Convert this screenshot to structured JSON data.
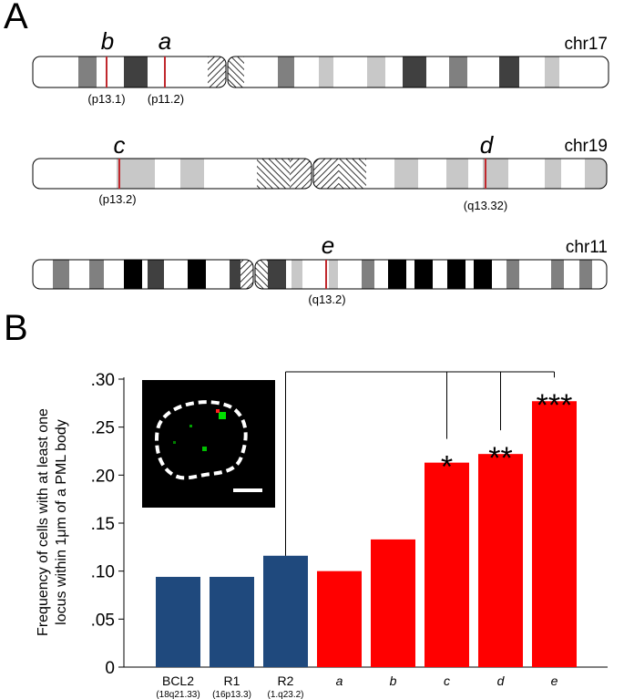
{
  "panels": {
    "a": "A",
    "b": "B"
  },
  "chromosomes": [
    {
      "name": "chr17",
      "loci": [
        {
          "letter": "b",
          "band": "(p13.1)"
        },
        {
          "letter": "a",
          "band": "(p11.2)"
        }
      ]
    },
    {
      "name": "chr19",
      "loci": [
        {
          "letter": "c",
          "band": "(p13.2)"
        },
        {
          "letter": "d",
          "band": "(q13.32)"
        }
      ]
    },
    {
      "name": "chr11",
      "loci": [
        {
          "letter": "e",
          "band": "(q13.2)"
        }
      ]
    }
  ],
  "colors": {
    "blue": "#1f497d",
    "red": "#ff0000",
    "locus_line": "#c0282d",
    "green": "#00e000"
  },
  "chart_data": {
    "type": "bar",
    "ylabel": "Frequency of cells with at least one locus within 1μm of a PML body",
    "ylim": [
      0,
      0.3
    ],
    "yticks": [
      "0",
      ".05",
      ".10",
      ".15",
      ".20",
      ".25",
      ".30"
    ],
    "categories": [
      {
        "label": "BCL2",
        "sub": "(18q21.33)",
        "value": 0.094,
        "color": "#1f497d",
        "italic": false
      },
      {
        "label": "R1",
        "sub": "(16p13.3)",
        "value": 0.094,
        "color": "#1f497d",
        "italic": false
      },
      {
        "label": "R2",
        "sub": "(1.q23.2)",
        "value": 0.116,
        "color": "#1f497d",
        "italic": false
      },
      {
        "label": "a",
        "sub": "",
        "value": 0.1,
        "color": "#ff0000",
        "italic": true
      },
      {
        "label": "b",
        "sub": "",
        "value": 0.133,
        "color": "#ff0000",
        "italic": true
      },
      {
        "label": "c",
        "sub": "",
        "value": 0.213,
        "color": "#ff0000",
        "italic": true
      },
      {
        "label": "d",
        "sub": "",
        "value": 0.222,
        "color": "#ff0000",
        "italic": true
      },
      {
        "label": "e",
        "sub": "",
        "value": 0.277,
        "color": "#ff0000",
        "italic": true
      }
    ],
    "significance": [
      {
        "category": "c",
        "stars": "*"
      },
      {
        "category": "d",
        "stars": "**"
      },
      {
        "category": "e",
        "stars": "***"
      }
    ],
    "comparison_reference": "R2"
  }
}
